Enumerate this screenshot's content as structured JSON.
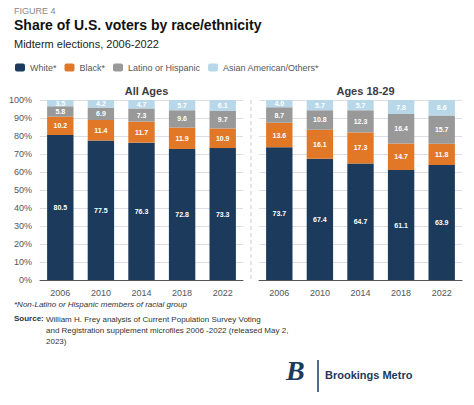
{
  "title": "Share of U.S. voters by race/ethnicity",
  "subtitle": "Midterm elections, 2006-2022",
  "annotations": [
    "FIGURE 4",
    "*Non-Latino or Hispanic members of racial group",
    "Source:",
    "William H. Frey analysis of Current Population Survey Voting\nand Registration supplement microfiles 2006 -2022 (released May 2,\n2023)",
    "B",
    "Brookings Metro"
  ],
  "legend": "top-left",
  "chart_data": [
    {
      "type": "bar",
      "title": "All Ages",
      "stacked": true,
      "data_labels": true,
      "grid": true,
      "categories": [
        "2006",
        "2010",
        "2014",
        "2018",
        "2022"
      ],
      "series": [
        {
          "name": "White*",
          "color": "#1b3a5c",
          "values": [
            80.5,
            77.5,
            76.3,
            72.8,
            73.3
          ]
        },
        {
          "name": "Black*",
          "color": "#e07828",
          "values": [
            10.2,
            11.4,
            11.7,
            11.9,
            10.9
          ]
        },
        {
          "name": "Latino or Hispanic",
          "color": "#999999",
          "values": [
            5.8,
            6.9,
            7.3,
            9.6,
            9.7
          ]
        },
        {
          "name": "Asian American/Others*",
          "color": "#b8d8ea",
          "values": [
            3.5,
            4.2,
            4.7,
            5.7,
            6.1
          ]
        }
      ],
      "ylim": [
        0,
        100
      ],
      "yticks": [
        {
          "value": 0,
          "label": "0%"
        },
        {
          "value": 10,
          "label": "10%"
        },
        {
          "value": 20,
          "label": "20%"
        },
        {
          "value": 30,
          "label": "30%"
        },
        {
          "value": 40,
          "label": "40%"
        },
        {
          "value": 50,
          "label": "50%"
        },
        {
          "value": 60,
          "label": "60%"
        },
        {
          "value": 70,
          "label": "70%"
        },
        {
          "value": 80,
          "label": "80%"
        },
        {
          "value": 90,
          "label": "90%"
        },
        {
          "value": 100,
          "label": "100%"
        }
      ]
    },
    {
      "type": "bar",
      "title": "Ages 18-29",
      "stacked": true,
      "data_labels": true,
      "grid": true,
      "tick_labels": "x",
      "categories": [
        "2006",
        "2010",
        "2014",
        "2018",
        "2022"
      ],
      "series": [
        {
          "name": "White*",
          "color": "#1b3a5c",
          "values": [
            73.7,
            67.4,
            64.7,
            61.1,
            63.9
          ]
        },
        {
          "name": "Black*",
          "color": "#e07828",
          "values": [
            13.6,
            16.1,
            17.3,
            14.7,
            11.8
          ]
        },
        {
          "name": "Latino or Hispanic",
          "color": "#999999",
          "values": [
            8.7,
            10.8,
            12.3,
            16.4,
            15.7
          ]
        },
        {
          "name": "Asian American/Others*",
          "color": "#b8d8ea",
          "values": [
            4.0,
            5.7,
            5.7,
            7.8,
            8.6
          ],
          "value_labels": [
            "4.0",
            "5.7",
            "5.7",
            "7.8",
            "8.6"
          ]
        }
      ],
      "ylim": [
        0,
        100
      ],
      "yticks": [
        0,
        10,
        20,
        30,
        40,
        50,
        60,
        70,
        80,
        90,
        100
      ]
    }
  ]
}
